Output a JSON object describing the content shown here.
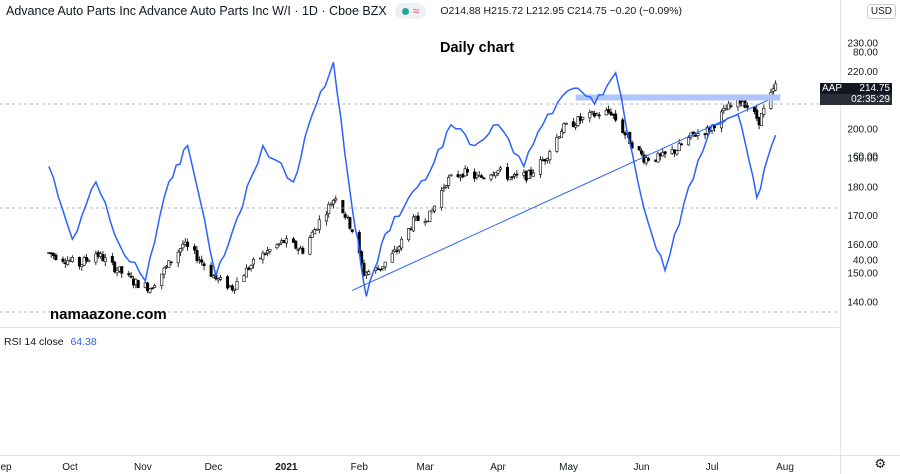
{
  "header": {
    "symbol": "Advance Auto Parts Inc Advance Auto Parts Inc W/I · 1D · Cboe BZX",
    "ohlc": "O214.88  H215.72  L212.95  C214.75  −0.20 (−0.09%)",
    "currency": "USD"
  },
  "annotations": {
    "title": "Daily chart",
    "watermark": "namaazone.com"
  },
  "price_tag": {
    "symbol": "AAP",
    "value": "214.75",
    "countdown": "02:35:29"
  },
  "rsi_label": {
    "name": "RSI 14 close",
    "value": "64.38"
  },
  "icons": {
    "settings": "gear-icon",
    "status": "green-dot-icon"
  },
  "colors": {
    "up": "#ffffff",
    "down": "#000000",
    "rsi": "#2962ff",
    "support": "#2962ff",
    "resistance": "#b0c4ff"
  },
  "chart_data": [
    {
      "type": "candlestick",
      "title": "Daily chart",
      "ticker": "AAP",
      "last_price": 214.75,
      "xlabel": "",
      "ylabel": "",
      "ylim": [
        135,
        225
      ],
      "yticks": [
        140,
        150,
        160,
        170,
        180,
        190,
        200,
        210,
        220,
        230
      ],
      "ytick_labels": [
        "140.00",
        "150.00",
        "160.00",
        "170.00",
        "180.00",
        "190.00",
        "200.00",
        "210.00",
        "220.00",
        "230.00"
      ],
      "xtick_labels": [
        "ep",
        "Oct",
        "Nov",
        "Dec",
        "2021",
        "Feb",
        "Mar",
        "Apr",
        "May",
        "Jun",
        "Jul",
        "Aug"
      ],
      "grid": false,
      "close_path": [
        [
          "2020-09-22",
          157
        ],
        [
          "2020-10-05",
          153
        ],
        [
          "2020-10-12",
          157
        ],
        [
          "2020-10-20",
          152
        ],
        [
          "2020-10-28",
          147
        ],
        [
          "2020-11-04",
          145
        ],
        [
          "2020-11-11",
          152
        ],
        [
          "2020-11-18",
          160
        ],
        [
          "2020-11-25",
          155
        ],
        [
          "2020-12-02",
          148
        ],
        [
          "2020-12-09",
          145
        ],
        [
          "2020-12-16",
          152
        ],
        [
          "2020-12-23",
          157
        ],
        [
          "2020-12-31",
          161
        ],
        [
          "2021-01-08",
          158
        ],
        [
          "2021-01-15",
          168
        ],
        [
          "2021-01-22",
          177
        ],
        [
          "2021-01-29",
          165
        ],
        [
          "2021-02-03",
          150
        ],
        [
          "2021-02-10",
          152
        ],
        [
          "2021-02-17",
          158
        ],
        [
          "2021-02-24",
          168
        ],
        [
          "2021-03-03",
          170
        ],
        [
          "2021-03-10",
          182
        ],
        [
          "2021-03-17",
          185
        ],
        [
          "2021-03-24",
          183
        ],
        [
          "2021-03-31",
          186
        ],
        [
          "2021-04-07",
          183
        ],
        [
          "2021-04-14",
          184
        ],
        [
          "2021-04-21",
          190
        ],
        [
          "2021-04-28",
          200
        ],
        [
          "2021-05-05",
          203
        ],
        [
          "2021-05-12",
          205
        ],
        [
          "2021-05-19",
          206
        ],
        [
          "2021-05-26",
          197
        ],
        [
          "2021-06-02",
          190
        ],
        [
          "2021-06-09",
          190
        ],
        [
          "2021-06-16",
          193
        ],
        [
          "2021-06-23",
          198
        ],
        [
          "2021-06-30",
          200
        ],
        [
          "2021-07-07",
          207
        ],
        [
          "2021-07-14",
          210
        ],
        [
          "2021-07-21",
          203
        ],
        [
          "2021-07-28",
          215
        ]
      ],
      "overlays": [
        {
          "kind": "support-trendline",
          "from": [
            "2021-01-29",
            144
          ],
          "to": [
            "2021-07-30",
            212
          ]
        },
        {
          "kind": "resistance-band",
          "from": [
            "2021-05-04",
            211
          ],
          "to": [
            "2021-07-30",
            211
          ]
        }
      ]
    },
    {
      "type": "line",
      "title": "RSI 14 close",
      "last_value": 64.38,
      "ylim": [
        25,
        83
      ],
      "yticks": [
        40,
        60,
        80
      ],
      "ytick_labels": [
        "40.00",
        "60.00",
        "80.00"
      ],
      "bands": [
        30,
        50,
        70
      ],
      "series": [
        {
          "name": "RSI 14 close",
          "x": [
            "2020-09-22",
            "2020-10-02",
            "2020-10-12",
            "2020-10-22",
            "2020-11-02",
            "2020-11-12",
            "2020-11-20",
            "2020-12-02",
            "2020-12-11",
            "2020-12-22",
            "2021-01-04",
            "2021-01-12",
            "2021-01-21",
            "2021-01-29",
            "2021-02-04",
            "2021-02-12",
            "2021-02-22",
            "2021-03-03",
            "2021-03-12",
            "2021-03-22",
            "2021-04-01",
            "2021-04-12",
            "2021-04-22",
            "2021-05-03",
            "2021-05-12",
            "2021-05-21",
            "2021-06-02",
            "2021-06-11",
            "2021-06-21",
            "2021-07-01",
            "2021-07-12",
            "2021-07-20",
            "2021-07-28"
          ],
          "values": [
            58,
            44,
            55,
            43,
            36,
            55,
            62,
            37,
            48,
            62,
            55,
            68,
            78,
            50,
            33,
            45,
            52,
            57,
            66,
            62,
            66,
            58,
            68,
            73,
            70,
            76,
            50,
            38,
            54,
            66,
            68,
            52,
            64
          ]
        }
      ]
    }
  ]
}
